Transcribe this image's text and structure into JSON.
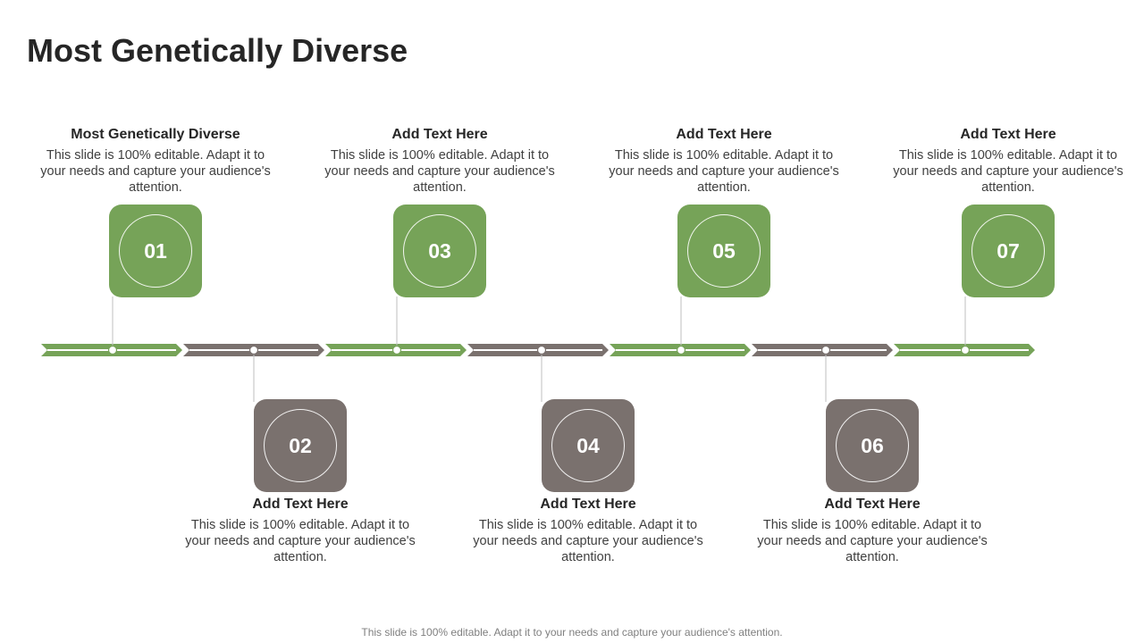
{
  "slide": {
    "title": "Most Genetically Diverse",
    "footer": "This slide is 100% editable. Adapt it to your needs and capture your audience's attention."
  },
  "colors": {
    "green": "#76A358",
    "gray": "#7A716E",
    "connector": "#bfbfbf"
  },
  "steps": [
    {
      "number": "01",
      "heading": "Most Genetically Diverse",
      "text": "This slide is 100% editable. Adapt it to your needs and capture your audience's attention.",
      "color": "green",
      "position": "top"
    },
    {
      "number": "02",
      "heading": "Add Text Here",
      "text": "This slide is 100% editable. Adapt it to your needs and capture your audience's attention.",
      "color": "gray",
      "position": "bottom"
    },
    {
      "number": "03",
      "heading": "Add Text Here",
      "text": "This slide is 100% editable. Adapt it to your needs and capture your audience's attention.",
      "color": "green",
      "position": "top"
    },
    {
      "number": "04",
      "heading": "Add Text Here",
      "text": "This slide is 100% editable. Adapt it to your needs and capture your audience's attention.",
      "color": "gray",
      "position": "bottom"
    },
    {
      "number": "05",
      "heading": "Add Text Here",
      "text": "This slide is 100% editable. Adapt it to your needs and capture your audience's attention.",
      "color": "green",
      "position": "top"
    },
    {
      "number": "06",
      "heading": "Add Text Here",
      "text": "This slide is 100% editable. Adapt it to your needs and capture your audience's attention.",
      "color": "gray",
      "position": "bottom"
    },
    {
      "number": "07",
      "heading": "Add Text Here",
      "text": "This slide is 100% editable. Adapt it to your needs and capture your audience's attention.",
      "color": "green",
      "position": "top"
    }
  ]
}
